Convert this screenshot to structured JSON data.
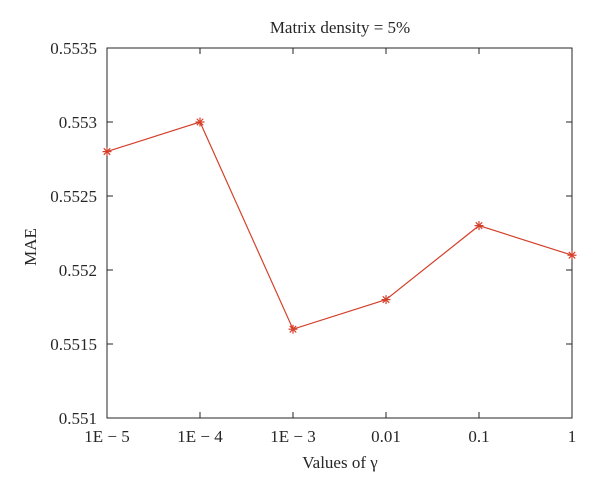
{
  "chart_data": {
    "type": "line",
    "title": "Matrix density = 5%",
    "xlabel": "Values of γ",
    "ylabel": "MAE",
    "categories": [
      "1E − 5",
      "1E − 4",
      "1E − 3",
      "0.01",
      "0.1",
      "1"
    ],
    "ylim": [
      0.551,
      0.5535
    ],
    "yticks": [
      0.551,
      0.5515,
      0.552,
      0.5525,
      0.553,
      0.5535
    ],
    "ytick_labels": [
      "0.551",
      "0.5515",
      "0.552",
      "0.5525",
      "0.553",
      "0.5535"
    ],
    "series": [
      {
        "values": [
          0.5528,
          0.553,
          0.5516,
          0.5518,
          0.5523,
          0.5521
        ],
        "color": "#d4402a",
        "marker": "asterisk"
      }
    ],
    "grid": false,
    "legend": "none"
  }
}
